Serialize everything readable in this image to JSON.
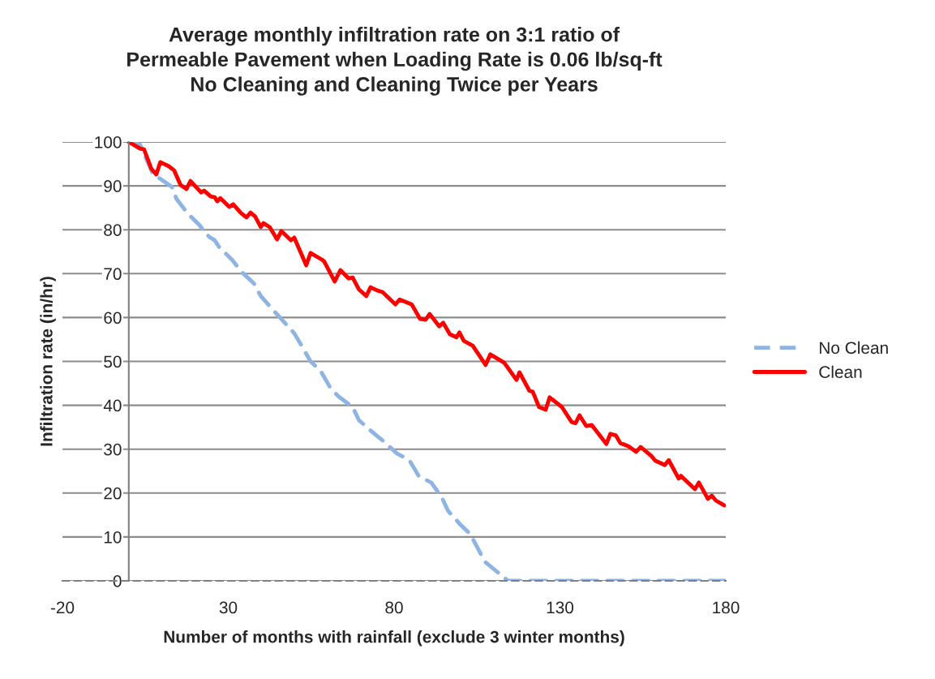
{
  "chart_data": {
    "type": "line",
    "title": "Average monthly infiltration rate on 3:1 ratio of\nPermeable Pavement when Loading Rate is 0.06 lb/sq-ft\nNo Cleaning and Cleaning Twice per Years",
    "xlabel": "Number of months with rainfall (exclude 3 winter months)",
    "ylabel": "Infiltration rate (in/hr)",
    "xlim": [
      -20,
      180
    ],
    "xticks": [
      -20,
      30,
      80,
      130,
      180
    ],
    "ylim": [
      0,
      100
    ],
    "yticks": [
      0,
      10,
      20,
      30,
      40,
      50,
      60,
      70,
      80,
      90,
      100
    ],
    "grid": "y",
    "legend": "right",
    "marker": "none",
    "series": [
      {
        "name": "No Clean",
        "color": "#8eb4e3",
        "line_style": "dashed",
        "x": [
          0,
          3.4,
          7.1,
          8.3,
          13,
          14.4,
          17.8,
          21,
          24.2,
          25.9,
          27.1,
          31.3,
          34,
          37.7,
          39.8,
          43.5,
          46.2,
          49.9,
          52.1,
          54.8,
          57.8,
          60.6,
          63.1,
          67.5,
          69.4,
          73.6,
          76.5,
          80.9,
          84.6,
          87.5,
          91.2,
          94.4,
          96.3,
          100,
          102.9,
          105.4,
          107.3,
          112,
          114.4,
          180
        ],
        "values": [
          100,
          99.4,
          93,
          92.2,
          89.8,
          87,
          83.7,
          81.3,
          78.4,
          77.6,
          76.2,
          73,
          70.4,
          67.8,
          64.9,
          61.7,
          59.5,
          56.4,
          53.6,
          50,
          47.9,
          44.2,
          42.1,
          39.6,
          36.6,
          33.8,
          32,
          29,
          27.5,
          23.8,
          22.4,
          19,
          15.9,
          12.8,
          10.7,
          7.2,
          4.4,
          1.5,
          0,
          0
        ]
      },
      {
        "name": "Clean",
        "color": "#ff0000",
        "line_style": "solid",
        "x": [
          0,
          3.4,
          4.6,
          6.8,
          8.3,
          9.5,
          12,
          13.7,
          15.6,
          17.4,
          18.6,
          21.8,
          22.7,
          24.7,
          25.9,
          26.7,
          27.6,
          30.3,
          31.5,
          33.7,
          35.5,
          36.7,
          38.1,
          39.8,
          40.6,
          42.5,
          44.7,
          46,
          48.9,
          49.9,
          53.5,
          54.8,
          58.2,
          58.9,
          62.1,
          63.8,
          66.3,
          67.5,
          69.4,
          71.6,
          72.9,
          74.8,
          76.5,
          80.4,
          81.7,
          85.3,
          87.8,
          89.5,
          90.7,
          93.6,
          94.8,
          96.8,
          98.8,
          99.7,
          101,
          103.7,
          107.6,
          109,
          113.2,
          116.9,
          117.8,
          120.8,
          121.8,
          123.7,
          125.7,
          126.9,
          130.6,
          133.5,
          134.7,
          135.9,
          137.9,
          139.6,
          144,
          145.2,
          146.9,
          148.2,
          150.6,
          153,
          154.3,
          157.5,
          158.7,
          161.6,
          162.8,
          165.8,
          166.5,
          170.7,
          171.9,
          174.6,
          175.8,
          177,
          179.5
        ],
        "values": [
          100,
          98.5,
          98.3,
          93.9,
          92.6,
          95.4,
          94.5,
          93.5,
          90.2,
          89.3,
          91.1,
          88.5,
          88.9,
          87.6,
          87.4,
          86.5,
          87.2,
          85.2,
          85.8,
          83.9,
          82.8,
          83.9,
          83,
          80.6,
          81.5,
          80.6,
          77.8,
          79.7,
          77.6,
          78.2,
          71.9,
          74.7,
          73.2,
          72.8,
          68.2,
          70.8,
          68.9,
          69.1,
          66.4,
          64.9,
          66.9,
          66.2,
          65.8,
          63,
          64.1,
          63,
          59.7,
          59.5,
          60.8,
          58,
          58.8,
          56.2,
          55.5,
          56.6,
          54.7,
          53.6,
          49.2,
          51.6,
          49.7,
          45.8,
          47.5,
          43.3,
          43.1,
          39.6,
          39,
          41.8,
          39.6,
          36.2,
          35.9,
          37.7,
          35.3,
          35.5,
          31.2,
          33.5,
          33.1,
          31.4,
          30.7,
          29.4,
          30.5,
          28.5,
          27.4,
          26.4,
          27.5,
          23.3,
          23.9,
          20.9,
          22.4,
          18.7,
          19.4,
          18.3,
          17.2
        ]
      }
    ]
  }
}
